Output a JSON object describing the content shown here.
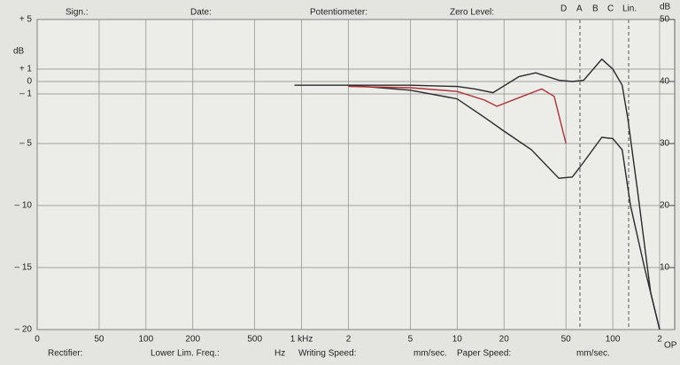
{
  "chart_data": {
    "type": "line",
    "y_label": "dB",
    "y2_label": "dB",
    "y2_bottom_label": "OP",
    "header": [
      "Sign.:",
      "Date:",
      "Potentiometer:",
      "Zero Level:",
      "D",
      "A",
      "B",
      "C",
      "Lin."
    ],
    "footer": [
      "Rectifier:",
      "Lower Lim. Freq.:",
      "Hz",
      "Writing Speed:",
      "mm/sec.",
      "Paper Speed:",
      "mm/sec."
    ],
    "xscale": "log",
    "xlim": [
      20,
      250000
    ],
    "xticks": [
      {
        "value": 20,
        "label": "0"
      },
      50,
      100,
      200,
      500,
      {
        "value": 1000,
        "label": "1 kHz"
      },
      {
        "value": 2000,
        "label": "2"
      },
      {
        "value": 5000,
        "label": "5"
      },
      {
        "value": 10000,
        "label": "10"
      },
      {
        "value": 20000,
        "label": "20"
      },
      {
        "value": 50000,
        "label": "50"
      },
      {
        "value": 100000,
        "label": "100"
      },
      {
        "value": 200000,
        "label": "2"
      }
    ],
    "ylim": [
      -20,
      5
    ],
    "yticks": [
      {
        "value": 5,
        "label": "+ 5"
      },
      {
        "value": 1,
        "label": "+ 1"
      },
      0,
      {
        "value": -1,
        "label": "– 1"
      },
      {
        "value": -5,
        "label": "– 5"
      },
      {
        "value": -10,
        "label": "– 10"
      },
      {
        "value": -15,
        "label": "– 15"
      },
      {
        "value": -20,
        "label": "– 20"
      }
    ],
    "y2lim": [
      0,
      50
    ],
    "y2ticks": [
      10,
      20,
      30,
      40,
      50
    ],
    "grid": true,
    "series": [
      {
        "color": "#2a2a2a",
        "x": [
          900,
          2000,
          5000,
          10000,
          13000,
          17000,
          25000,
          32000,
          45000,
          55000,
          65000,
          85000,
          100000,
          115000,
          125000,
          145000,
          175000,
          200000
        ],
        "values": [
          -0.3,
          -0.3,
          -0.3,
          -0.4,
          -0.6,
          -0.9,
          0.4,
          0.7,
          0.1,
          0,
          0.1,
          1.8,
          1,
          -0.3,
          -3,
          -9,
          -17,
          -20
        ]
      },
      {
        "color": "#2a2a2a",
        "x": [
          2000,
          5000,
          10000,
          15000,
          20000,
          30000,
          45000,
          55000,
          65000,
          85000,
          100000,
          115000,
          130000,
          160000,
          200000
        ],
        "values": [
          -0.3,
          -0.7,
          -1.4,
          -2.9,
          -4,
          -5.5,
          -7.8,
          -7.7,
          -6.5,
          -4.5,
          -4.6,
          -5.5,
          -10,
          -15,
          -20
        ]
      },
      {
        "color": "#b03038",
        "x": [
          2000,
          5000,
          10000,
          15000,
          18000,
          25000,
          35000,
          42000,
          50000
        ],
        "values": [
          -0.4,
          -0.5,
          -0.8,
          -1.5,
          -2,
          -1.3,
          -0.6,
          -1.2,
          -5
        ]
      }
    ]
  }
}
